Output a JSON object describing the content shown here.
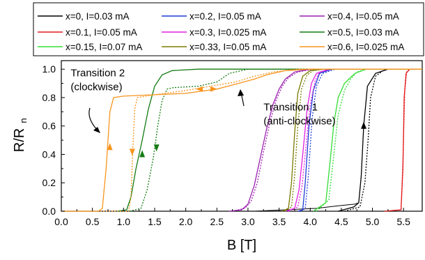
{
  "chart_data": {
    "type": "line",
    "xlabel": "B [T]",
    "ylabel_main": "R/R",
    "ylabel_sub": "n",
    "xlim": [
      0.0,
      5.8
    ],
    "ylim": [
      0.0,
      1.06
    ],
    "xticks": [
      "0.0",
      "0.5",
      "1.0",
      "1.5",
      "2.0",
      "2.5",
      "3.0",
      "3.5",
      "4.0",
      "4.5",
      "5.0",
      "5.5"
    ],
    "yticks": [
      "0.0",
      "0.2",
      "0.4",
      "0.6",
      "0.8",
      "1.0"
    ],
    "grid": false,
    "legend_position": "top",
    "legend_columns": 3,
    "series": [
      {
        "name": "x=0, I=0.03 mA",
        "color": "#000000",
        "up": [
          [
            4.45,
            0.0
          ],
          [
            4.7,
            0.03
          ],
          [
            4.78,
            0.06
          ],
          [
            4.82,
            0.25
          ],
          [
            4.86,
            0.6
          ],
          [
            4.92,
            0.88
          ],
          [
            5.05,
            0.97
          ],
          [
            5.25,
            1.0
          ],
          [
            5.8,
            1.0
          ]
        ],
        "down": [
          [
            4.55,
            0.0
          ],
          [
            4.8,
            0.03
          ],
          [
            4.88,
            0.2
          ],
          [
            4.93,
            0.5
          ],
          [
            4.97,
            0.8
          ],
          [
            5.05,
            0.95
          ],
          [
            5.2,
            1.0
          ],
          [
            5.8,
            1.0
          ]
        ],
        "step": [
          [
            0.0,
            0.0
          ],
          [
            3.1,
            0.0
          ],
          [
            3.6,
            0.01
          ],
          [
            4.1,
            0.02
          ],
          [
            4.5,
            0.04
          ],
          [
            4.72,
            0.05
          ],
          [
            4.78,
            0.06
          ]
        ]
      },
      {
        "name": "x=0.1, I=0.05 mA",
        "color": "#e41a1c",
        "up": [
          [
            5.2,
            0.0
          ],
          [
            5.46,
            0.01
          ],
          [
            5.49,
            0.3
          ],
          [
            5.51,
            0.8
          ],
          [
            5.54,
            0.97
          ],
          [
            5.6,
            1.0
          ],
          [
            5.8,
            1.0
          ]
        ],
        "down": [
          [
            5.2,
            0.0
          ],
          [
            5.46,
            0.01
          ],
          [
            5.49,
            0.35
          ],
          [
            5.52,
            0.85
          ],
          [
            5.55,
            0.98
          ],
          [
            5.6,
            1.0
          ],
          [
            5.8,
            1.0
          ]
        ]
      },
      {
        "name": "x=0.15, I=0.07 mA",
        "color": "#33dd33",
        "up": [
          [
            4.05,
            0.0
          ],
          [
            4.25,
            0.06
          ],
          [
            4.32,
            0.35
          ],
          [
            4.38,
            0.62
          ],
          [
            4.45,
            0.8
          ],
          [
            4.55,
            0.9
          ],
          [
            4.62,
            0.93
          ],
          [
            4.72,
            0.97
          ],
          [
            4.9,
            1.0
          ],
          [
            5.8,
            1.0
          ]
        ],
        "down": [
          [
            4.1,
            0.0
          ],
          [
            4.3,
            0.08
          ],
          [
            4.38,
            0.4
          ],
          [
            4.45,
            0.68
          ],
          [
            4.55,
            0.85
          ],
          [
            4.65,
            0.93
          ],
          [
            4.75,
            0.98
          ],
          [
            4.9,
            1.0
          ],
          [
            5.8,
            1.0
          ]
        ]
      },
      {
        "name": "x=0.2, I=0.05 mA",
        "color": "#1f3bd6",
        "up": [
          [
            3.8,
            0.0
          ],
          [
            3.88,
            0.01
          ],
          [
            3.92,
            0.2
          ],
          [
            3.98,
            0.6
          ],
          [
            4.05,
            0.85
          ],
          [
            4.15,
            0.97
          ],
          [
            4.35,
            1.0
          ],
          [
            5.8,
            1.0
          ]
        ],
        "down": [
          [
            3.85,
            0.0
          ],
          [
            3.92,
            0.02
          ],
          [
            3.97,
            0.25
          ],
          [
            4.03,
            0.65
          ],
          [
            4.1,
            0.88
          ],
          [
            4.2,
            0.97
          ],
          [
            4.4,
            1.0
          ],
          [
            5.8,
            1.0
          ]
        ]
      },
      {
        "name": "x=0.3, I=0.025 mA",
        "color": "#e020e0",
        "up": [
          [
            3.6,
            0.0
          ],
          [
            3.75,
            0.02
          ],
          [
            3.82,
            0.15
          ],
          [
            3.88,
            0.4
          ],
          [
            3.95,
            0.72
          ],
          [
            4.02,
            0.9
          ],
          [
            4.1,
            0.97
          ],
          [
            4.3,
            1.0
          ],
          [
            5.8,
            1.0
          ]
        ],
        "down": [
          [
            3.65,
            0.0
          ],
          [
            3.8,
            0.03
          ],
          [
            3.87,
            0.18
          ],
          [
            3.93,
            0.45
          ],
          [
            4.0,
            0.75
          ],
          [
            4.08,
            0.92
          ],
          [
            4.15,
            0.98
          ],
          [
            4.35,
            1.0
          ],
          [
            5.8,
            1.0
          ]
        ]
      },
      {
        "name": "x=0.33, I=0.05 mA",
        "color": "#7a7a00",
        "up": [
          [
            3.55,
            0.0
          ],
          [
            3.65,
            0.02
          ],
          [
            3.7,
            0.2
          ],
          [
            3.75,
            0.55
          ],
          [
            3.8,
            0.83
          ],
          [
            3.88,
            0.95
          ],
          [
            4.0,
            0.99
          ],
          [
            4.2,
            1.0
          ],
          [
            5.8,
            1.0
          ]
        ],
        "down": [
          [
            3.6,
            0.0
          ],
          [
            3.7,
            0.03
          ],
          [
            3.75,
            0.25
          ],
          [
            3.8,
            0.6
          ],
          [
            3.86,
            0.86
          ],
          [
            3.95,
            0.96
          ],
          [
            4.05,
            0.99
          ],
          [
            4.25,
            1.0
          ],
          [
            5.8,
            1.0
          ]
        ]
      },
      {
        "name": "x=0.4, I=0.05 mA",
        "color": "#9a1fb0",
        "up": [
          [
            2.7,
            0.0
          ],
          [
            2.9,
            0.01
          ],
          [
            3.0,
            0.05
          ],
          [
            3.1,
            0.18
          ],
          [
            3.2,
            0.38
          ],
          [
            3.3,
            0.58
          ],
          [
            3.4,
            0.75
          ],
          [
            3.5,
            0.86
          ],
          [
            3.6,
            0.93
          ],
          [
            3.75,
            0.98
          ],
          [
            4.0,
            1.0
          ],
          [
            5.8,
            1.0
          ]
        ],
        "down": [
          [
            2.75,
            0.0
          ],
          [
            2.95,
            0.02
          ],
          [
            3.05,
            0.07
          ],
          [
            3.15,
            0.2
          ],
          [
            3.25,
            0.42
          ],
          [
            3.35,
            0.62
          ],
          [
            3.45,
            0.78
          ],
          [
            3.55,
            0.88
          ],
          [
            3.65,
            0.94
          ],
          [
            3.8,
            0.98
          ],
          [
            4.05,
            1.0
          ],
          [
            5.8,
            1.0
          ]
        ]
      },
      {
        "name": "x=0.5, I=0.03 mA",
        "color": "#137b13",
        "up": [
          [
            0.9,
            0.0
          ],
          [
            1.05,
            0.01
          ],
          [
            1.12,
            0.1
          ],
          [
            1.2,
            0.3
          ],
          [
            1.3,
            0.5
          ],
          [
            1.4,
            0.72
          ],
          [
            1.5,
            0.88
          ],
          [
            1.62,
            0.96
          ],
          [
            1.78,
            0.99
          ],
          [
            2.2,
            1.0
          ],
          [
            5.8,
            1.0
          ]
        ],
        "down": [
          [
            1.1,
            0.0
          ],
          [
            1.28,
            0.02
          ],
          [
            1.38,
            0.15
          ],
          [
            1.48,
            0.38
          ],
          [
            1.55,
            0.6
          ],
          [
            1.62,
            0.78
          ],
          [
            1.7,
            0.86
          ],
          [
            1.8,
            0.87
          ],
          [
            2.2,
            0.88
          ],
          [
            2.5,
            0.91
          ],
          [
            2.7,
            0.97
          ],
          [
            3.0,
            1.0
          ],
          [
            5.8,
            1.0
          ]
        ]
      },
      {
        "name": "x=0.6, I=0.025 mA",
        "color": "#f7941d",
        "up": [
          [
            0.0,
            0.0
          ],
          [
            0.6,
            0.0
          ],
          [
            0.66,
            0.02
          ],
          [
            0.72,
            0.3
          ],
          [
            0.78,
            0.7
          ],
          [
            0.84,
            0.8
          ],
          [
            1.0,
            0.81
          ],
          [
            1.5,
            0.82
          ],
          [
            2.0,
            0.83
          ],
          [
            2.5,
            0.86
          ],
          [
            2.85,
            0.9
          ],
          [
            3.1,
            0.93
          ],
          [
            3.3,
            0.96
          ],
          [
            3.6,
            0.99
          ],
          [
            4.0,
            1.0
          ],
          [
            5.8,
            1.0
          ]
        ],
        "down": [
          [
            0.0,
            0.0
          ],
          [
            1.08,
            0.0
          ],
          [
            1.12,
            0.1
          ],
          [
            1.15,
            0.45
          ],
          [
            1.18,
            0.72
          ],
          [
            1.22,
            0.8
          ],
          [
            1.5,
            0.82
          ],
          [
            2.0,
            0.85
          ],
          [
            2.4,
            0.88
          ],
          [
            2.8,
            0.91
          ],
          [
            3.1,
            0.95
          ],
          [
            3.4,
            0.98
          ],
          [
            3.8,
            1.0
          ],
          [
            5.8,
            1.0
          ]
        ]
      }
    ],
    "annotations": [
      {
        "text_lines": [
          "Transition 2",
          "(clockwise)"
        ],
        "x": 0.15,
        "y": 0.95
      },
      {
        "text_lines": [
          "Transition 1",
          "(anti-clockwise)"
        ],
        "x": 3.25,
        "y": 0.71
      }
    ]
  }
}
